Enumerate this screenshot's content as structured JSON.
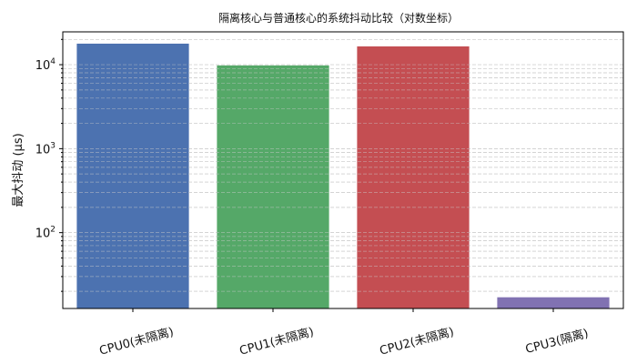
{
  "chart_data": {
    "type": "bar",
    "title": "隔离核心与普通核心的系统抖动比较（对数坐标）",
    "xlabel": "",
    "ylabel": "最大抖动 (μs)",
    "yscale": "log",
    "ylim": [
      12.5,
      24600
    ],
    "grid": true,
    "categories": [
      "CPU0(未隔离)",
      "CPU1(未隔离)",
      "CPU2(未隔离)",
      "CPU3(隔离)"
    ],
    "values": [
      17800,
      9800,
      16500,
      17
    ],
    "colors": [
      "#4c72b0",
      "#55a868",
      "#c44e52",
      "#8172b2"
    ],
    "yticks": [
      {
        "value": 100,
        "label_base": "10",
        "label_exp": "2"
      },
      {
        "value": 1000,
        "label_base": "10",
        "label_exp": "3"
      },
      {
        "value": 10000,
        "label_base": "10",
        "label_exp": "4"
      }
    ],
    "xtick_rotation": -15
  }
}
